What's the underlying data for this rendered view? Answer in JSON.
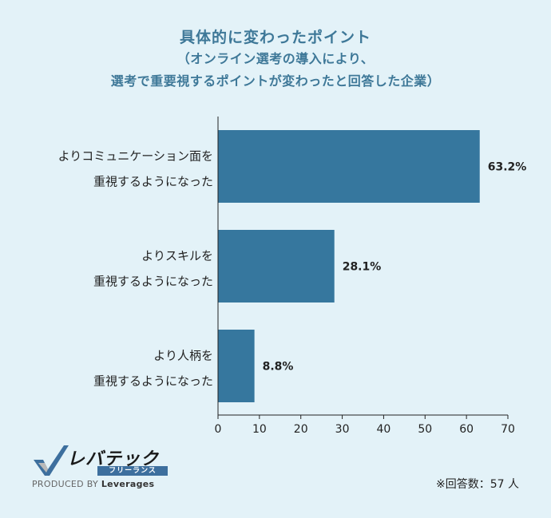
{
  "title": "具体的に変わったポイント",
  "subtitle_lines": [
    "（オンライン選考の導入により、",
    "選考で重要視するポイントが変わったと回答した企業）"
  ],
  "footnote": "※回答数：57 人",
  "logo": {
    "wordmark": "レバテック",
    "tagline": "フリーランス",
    "produced_prefix": "PRODUCED BY",
    "produced_brand": "Leverages"
  },
  "colors": {
    "background": "#e3f2f8",
    "bar": "#36779e",
    "title": "#3e7898",
    "axis": "#222222"
  },
  "chart_data": {
    "type": "bar",
    "orientation": "horizontal",
    "categories": [
      [
        "よりコミュニケーション面を",
        "重視するようになった"
      ],
      [
        "よりスキルを",
        "重視するようになった"
      ],
      [
        "より人柄を",
        "重視するようになった"
      ]
    ],
    "values": [
      63.2,
      28.1,
      8.8
    ],
    "value_labels": [
      "63.2%",
      "28.1%",
      "8.8%"
    ],
    "xlim": [
      0,
      70
    ],
    "xticks": [
      0,
      10,
      20,
      30,
      40,
      50,
      60,
      70
    ],
    "grid": false
  }
}
